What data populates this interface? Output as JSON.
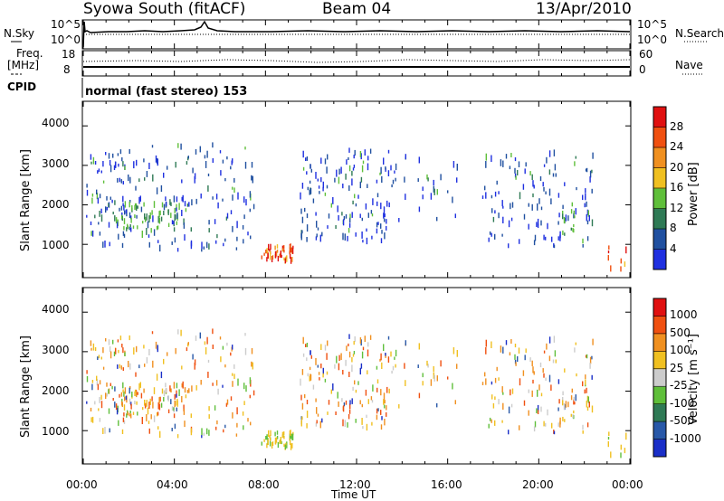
{
  "header": {
    "station": "Syowa South (fitACF)",
    "beam": "Beam 04",
    "date": "13/Apr/2010"
  },
  "noise_panel": {
    "left_label": "N.Sky",
    "right_label": "N.Search",
    "left_ticks": [
      "10^5",
      "10^0"
    ],
    "right_ticks": [
      "10^5",
      "10^0"
    ]
  },
  "freq_panel": {
    "left_label": "Freq.",
    "left_unit": "[MHz]",
    "right_label": "Nave",
    "left_ticks": [
      "18",
      "8"
    ],
    "right_ticks": [
      "60",
      "0"
    ]
  },
  "cpid": {
    "label": "CPID",
    "text": "normal (fast stereo) 153"
  },
  "chart_data": [
    {
      "type": "heatmap",
      "name": "power",
      "ylabel": "Slant Range [km]",
      "y_ticks": [
        "4000",
        "3000",
        "2000",
        "1000"
      ],
      "ylim": [
        180,
        4600
      ],
      "colorbar_label": "Power [dB]",
      "colorbar_ticks": [
        "28",
        "24",
        "20",
        "16",
        "12",
        "8",
        "4"
      ],
      "colorbar_colors": [
        "#1f30e0",
        "#2050a0",
        "#2f7a55",
        "#5fbf3a",
        "#f0c020",
        "#f09020",
        "#f05010",
        "#e01010"
      ]
    },
    {
      "type": "heatmap",
      "name": "velocity",
      "ylabel": "Slant Range [km]",
      "y_ticks": [
        "4000",
        "3000",
        "2000",
        "1000"
      ],
      "ylim": [
        180,
        4600
      ],
      "colorbar_label": "Velocity [m s⁻¹]",
      "colorbar_ticks": [
        "1000",
        "500",
        "100",
        "25",
        "-25",
        "-100",
        "-500",
        "-1000"
      ],
      "colorbar_colors": [
        "#1a2fc8",
        "#2858a8",
        "#2f7a55",
        "#5fbf3a",
        "#cccccc",
        "#f0c020",
        "#f09020",
        "#f05010",
        "#e01010"
      ]
    }
  ],
  "x_axis": {
    "ticks": [
      "00:00",
      "04:00",
      "08:00",
      "12:00",
      "16:00",
      "20:00",
      "00:00"
    ],
    "label": "Time UT"
  }
}
